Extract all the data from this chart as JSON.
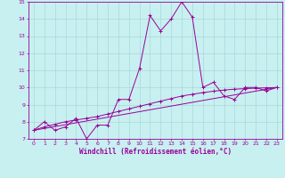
{
  "xlabel": "Windchill (Refroidissement éolien,°C)",
  "background_color": "#c8f0f0",
  "line_color": "#990099",
  "xlim": [
    -0.5,
    23.5
  ],
  "ylim": [
    7,
    15
  ],
  "yticks": [
    7,
    8,
    9,
    10,
    11,
    12,
    13,
    14,
    15
  ],
  "xticks": [
    0,
    1,
    2,
    3,
    4,
    5,
    6,
    7,
    8,
    9,
    10,
    11,
    12,
    13,
    14,
    15,
    16,
    17,
    18,
    19,
    20,
    21,
    22,
    23
  ],
  "series1_x": [
    0,
    1,
    2,
    3,
    4,
    5,
    6,
    7,
    8,
    9,
    10,
    11,
    12,
    13,
    14,
    15,
    16,
    17,
    18,
    19,
    20,
    21,
    22,
    23
  ],
  "series1_y": [
    7.5,
    8.0,
    7.5,
    7.7,
    8.2,
    7.0,
    7.8,
    7.8,
    9.3,
    9.3,
    11.1,
    14.2,
    13.3,
    14.0,
    15.0,
    14.1,
    10.0,
    10.3,
    9.5,
    9.3,
    10.0,
    10.0,
    9.8,
    10.0
  ],
  "series2_x": [
    0,
    1,
    2,
    3,
    4,
    5,
    6,
    7,
    8,
    9,
    10,
    11,
    12,
    13,
    14,
    15,
    16,
    17,
    18,
    19,
    20,
    21,
    22,
    23
  ],
  "series2_y": [
    7.5,
    7.7,
    7.85,
    8.0,
    8.1,
    8.2,
    8.3,
    8.45,
    8.6,
    8.75,
    8.9,
    9.05,
    9.2,
    9.35,
    9.5,
    9.6,
    9.7,
    9.78,
    9.85,
    9.9,
    9.93,
    9.96,
    9.98,
    10.0
  ],
  "series3_x": [
    0,
    23
  ],
  "series3_y": [
    7.5,
    10.0
  ],
  "grid_color": "#a8d8d8"
}
